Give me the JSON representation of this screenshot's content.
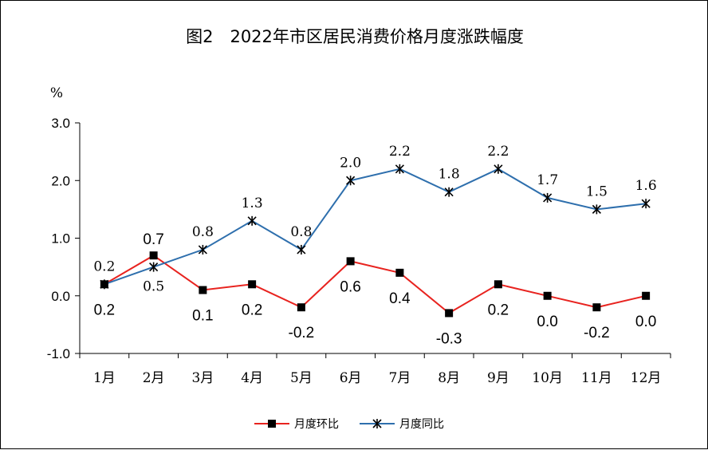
{
  "chart_data": {
    "type": "line",
    "title": "图2　2022年市区居民消费价格月度涨跌幅度",
    "ylabel": "%",
    "ylim": [
      -1.0,
      3.0
    ],
    "yticks": [
      "3.0",
      "2.0",
      "1.0",
      "0.0",
      "-1.0"
    ],
    "categories": [
      "1月",
      "2月",
      "3月",
      "4月",
      "5月",
      "6月",
      "7月",
      "8月",
      "9月",
      "10月",
      "11月",
      "12月"
    ],
    "series": [
      {
        "name": "月度环比",
        "color": "#e8231f",
        "marker": "square",
        "values": [
          0.2,
          0.7,
          0.1,
          0.2,
          -0.2,
          0.6,
          0.4,
          -0.3,
          0.2,
          0.0,
          -0.2,
          0.0
        ],
        "labels": [
          "0.2",
          "0.7",
          "0.1",
          "0.2",
          "-0.2",
          "0.6",
          "0.4",
          "-0.3",
          "0.2",
          "0.0",
          "-0.2",
          "0.0"
        ]
      },
      {
        "name": "月度同比",
        "color": "#2e6fad",
        "marker": "asterisk",
        "values": [
          0.2,
          0.5,
          0.8,
          1.3,
          0.8,
          2.0,
          2.2,
          1.8,
          2.2,
          1.7,
          1.5,
          1.6
        ],
        "labels": [
          "0.2",
          "0.5",
          "0.8",
          "1.3",
          "0.8",
          "2.0",
          "2.2",
          "1.8",
          "2.2",
          "1.7",
          "1.5",
          "1.6"
        ]
      }
    ],
    "grid": false,
    "legend": "bottom"
  }
}
